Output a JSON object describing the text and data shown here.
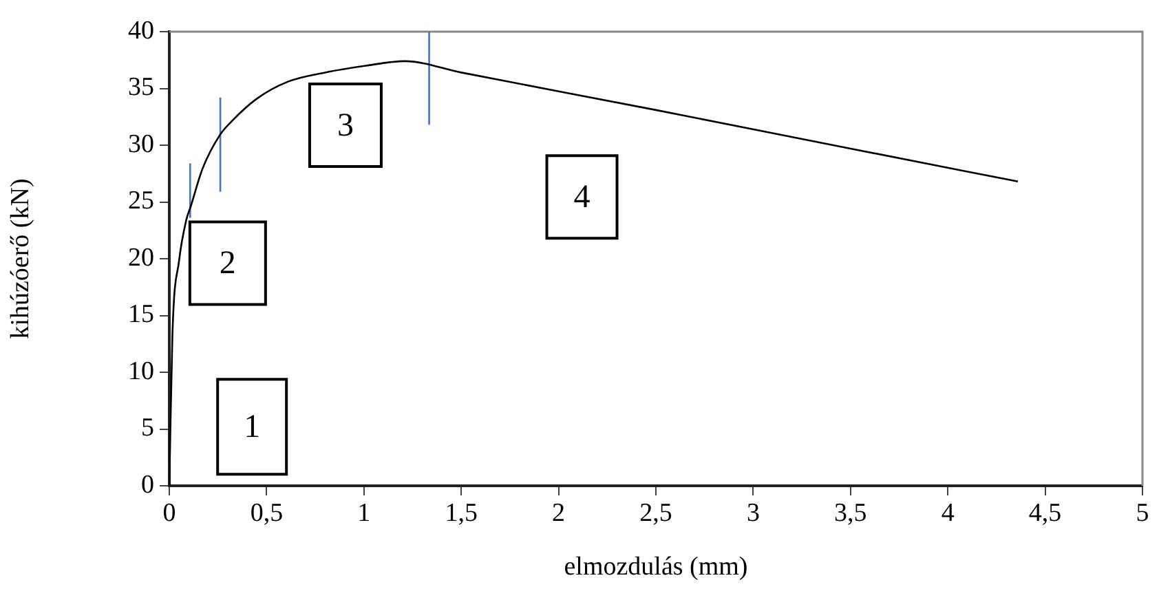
{
  "chart_data": {
    "type": "line",
    "xlabel": "elmozdulás (mm)",
    "ylabel": "kihúzóerő (kN)",
    "xlim": [
      0,
      5
    ],
    "xticks": [
      0,
      {
        "value": 0.5,
        "label": "0,5"
      },
      1,
      {
        "value": 1.5,
        "label": "1,5"
      },
      2,
      {
        "value": 2.5,
        "label": "2,5"
      },
      3,
      {
        "value": 3.5,
        "label": "3,5"
      },
      4,
      {
        "value": 4.5,
        "label": "4,5"
      },
      5
    ],
    "ylim": [
      0,
      40
    ],
    "yticks": [
      0,
      5,
      10,
      15,
      20,
      25,
      30,
      35,
      40
    ],
    "grid": false,
    "legend": false,
    "marker": "none",
    "series": [
      {
        "color": "#000000",
        "x": [
          0,
          0.016,
          0.05,
          0.087,
          0.11,
          0.17,
          0.26,
          0.32,
          0.45,
          0.61,
          0.8,
          1.01,
          1.21,
          1.5,
          2.5,
          3.5,
          4.36
        ],
        "values": [
          0,
          13.3,
          19.8,
          23.4,
          24.6,
          27.9,
          30.9,
          32.1,
          34.1,
          35.6,
          36.4,
          37.0,
          37.4,
          36.4,
          33.1,
          29.7,
          26.8
        ]
      },
      {
        "color": "#4472c4",
        "x": [
          0.107,
          0.107
        ],
        "values": [
          23.6,
          28.4
        ]
      },
      {
        "color": "#4472c4",
        "x": [
          0.262,
          0.262
        ],
        "values": [
          25.9,
          34.2
        ]
      },
      {
        "color": "#4472c4",
        "x": [
          1.335,
          1.335
        ],
        "values": [
          31.8,
          40
        ]
      }
    ],
    "annotations": [
      "1",
      "2",
      "3",
      "4"
    ]
  }
}
